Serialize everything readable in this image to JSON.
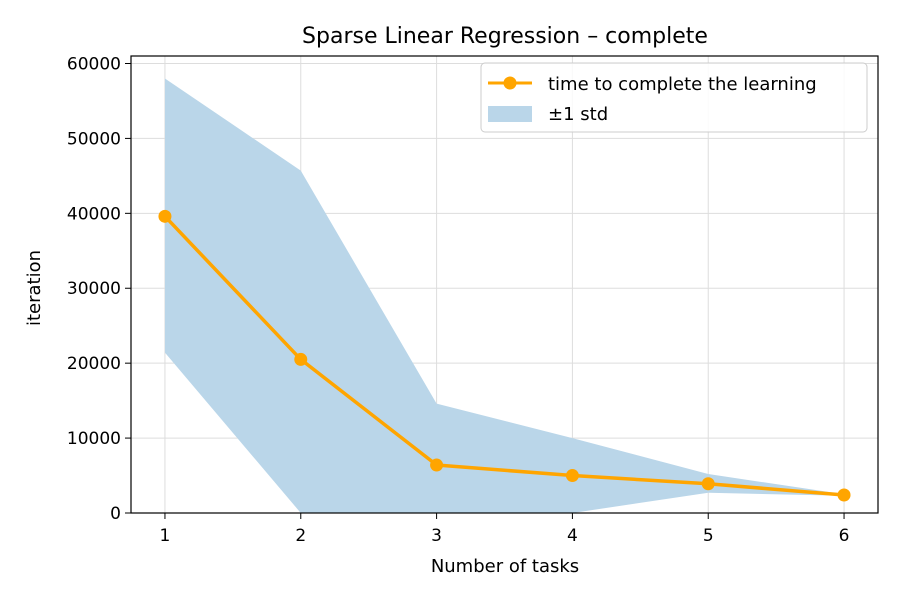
{
  "chart_data": {
    "type": "line",
    "title": "Sparse Linear Regression – complete",
    "xlabel": "Number of tasks",
    "ylabel": "iteration",
    "x": [
      1,
      2,
      3,
      4,
      5,
      6
    ],
    "xlim": [
      0.75,
      6.25
    ],
    "ylim": [
      0,
      61000
    ],
    "xticks": [
      "1",
      "2",
      "3",
      "4",
      "5",
      "6"
    ],
    "yticks": [
      "0",
      "10000",
      "20000",
      "30000",
      "40000",
      "50000",
      "60000"
    ],
    "grid": true,
    "legend_position": "top-right",
    "series": [
      {
        "name": "time to complete the learning",
        "kind": "line",
        "color": "#ffa500",
        "values": [
          39600,
          20500,
          6400,
          5000,
          3900,
          2400
        ]
      },
      {
        "name": "±1 std",
        "kind": "band",
        "color": "#bad6e9",
        "lower": [
          21400,
          0,
          0,
          0,
          2700,
          2300
        ],
        "upper": [
          58000,
          45700,
          14600,
          10000,
          5200,
          2500
        ]
      }
    ]
  }
}
